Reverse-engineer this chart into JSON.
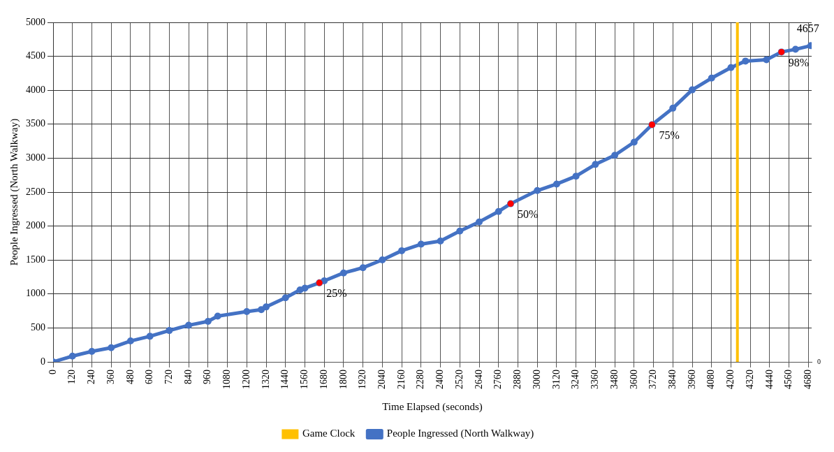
{
  "chart_data": {
    "type": "line",
    "xlabel": "Time Elapsed (seconds)",
    "ylabel": "People Ingressed (North Walkway)",
    "xlim": [
      0,
      4700
    ],
    "xticks": [
      0,
      120,
      240,
      360,
      480,
      600,
      720,
      840,
      960,
      1080,
      1200,
      1320,
      1440,
      1560,
      1680,
      1800,
      1920,
      2040,
      2160,
      2280,
      2400,
      2520,
      2640,
      2760,
      2880,
      3000,
      3120,
      3240,
      3360,
      3480,
      3600,
      3720,
      3840,
      3960,
      4080,
      4200,
      4320,
      4440,
      4560,
      4680
    ],
    "ylim": [
      0,
      5000
    ],
    "yticks": [
      0,
      500,
      1000,
      1500,
      2000,
      2500,
      3000,
      3500,
      4000,
      4500,
      5000
    ],
    "grid": true,
    "legend": "bottom",
    "marker": "circle",
    "ref_lines": [
      {
        "axis": "x",
        "value": 4240,
        "label": "Game Clock",
        "color": "#ffc000"
      }
    ],
    "series": [
      {
        "name": "People Ingressed (North Walkway)",
        "color": "#4472c4",
        "x": [
          0,
          120,
          240,
          360,
          480,
          600,
          720,
          840,
          960,
          1020,
          1200,
          1290,
          1320,
          1440,
          1530,
          1560,
          1650,
          1680,
          1800,
          1920,
          2040,
          2160,
          2280,
          2400,
          2520,
          2640,
          2760,
          2835,
          3000,
          3120,
          3240,
          3360,
          3480,
          3600,
          3711,
          3840,
          3960,
          4080,
          4200,
          4290,
          4420,
          4513,
          4600,
          4695
        ],
        "values": [
          0,
          85,
          154,
          208,
          308,
          377,
          462,
          539,
          597,
          674,
          740,
          770,
          809,
          944,
          1059,
          1086,
          1164,
          1194,
          1310,
          1387,
          1502,
          1637,
          1733,
          1780,
          1926,
          2061,
          2215,
          2329,
          2523,
          2619,
          2735,
          2908,
          3043,
          3236,
          3493,
          3736,
          4006,
          4179,
          4334,
          4430,
          4449,
          4564,
          4603,
          4657
        ],
        "value_labels": [
          null,
          null,
          null,
          null,
          null,
          null,
          null,
          null,
          null,
          null,
          null,
          null,
          null,
          null,
          null,
          null,
          null,
          null,
          null,
          null,
          null,
          null,
          null,
          null,
          null,
          null,
          null,
          null,
          null,
          null,
          null,
          null,
          null,
          null,
          null,
          null,
          null,
          null,
          null,
          null,
          null,
          null,
          null,
          "4657"
        ]
      }
    ],
    "annotations": [
      {
        "text": "25%",
        "x": 1650,
        "y": 1164
      },
      {
        "text": "50%",
        "x": 2835,
        "y": 2329
      },
      {
        "text": "75%",
        "x": 3711,
        "y": 3493
      },
      {
        "text": "98%",
        "x": 4513,
        "y": 4564
      },
      "0"
    ]
  }
}
